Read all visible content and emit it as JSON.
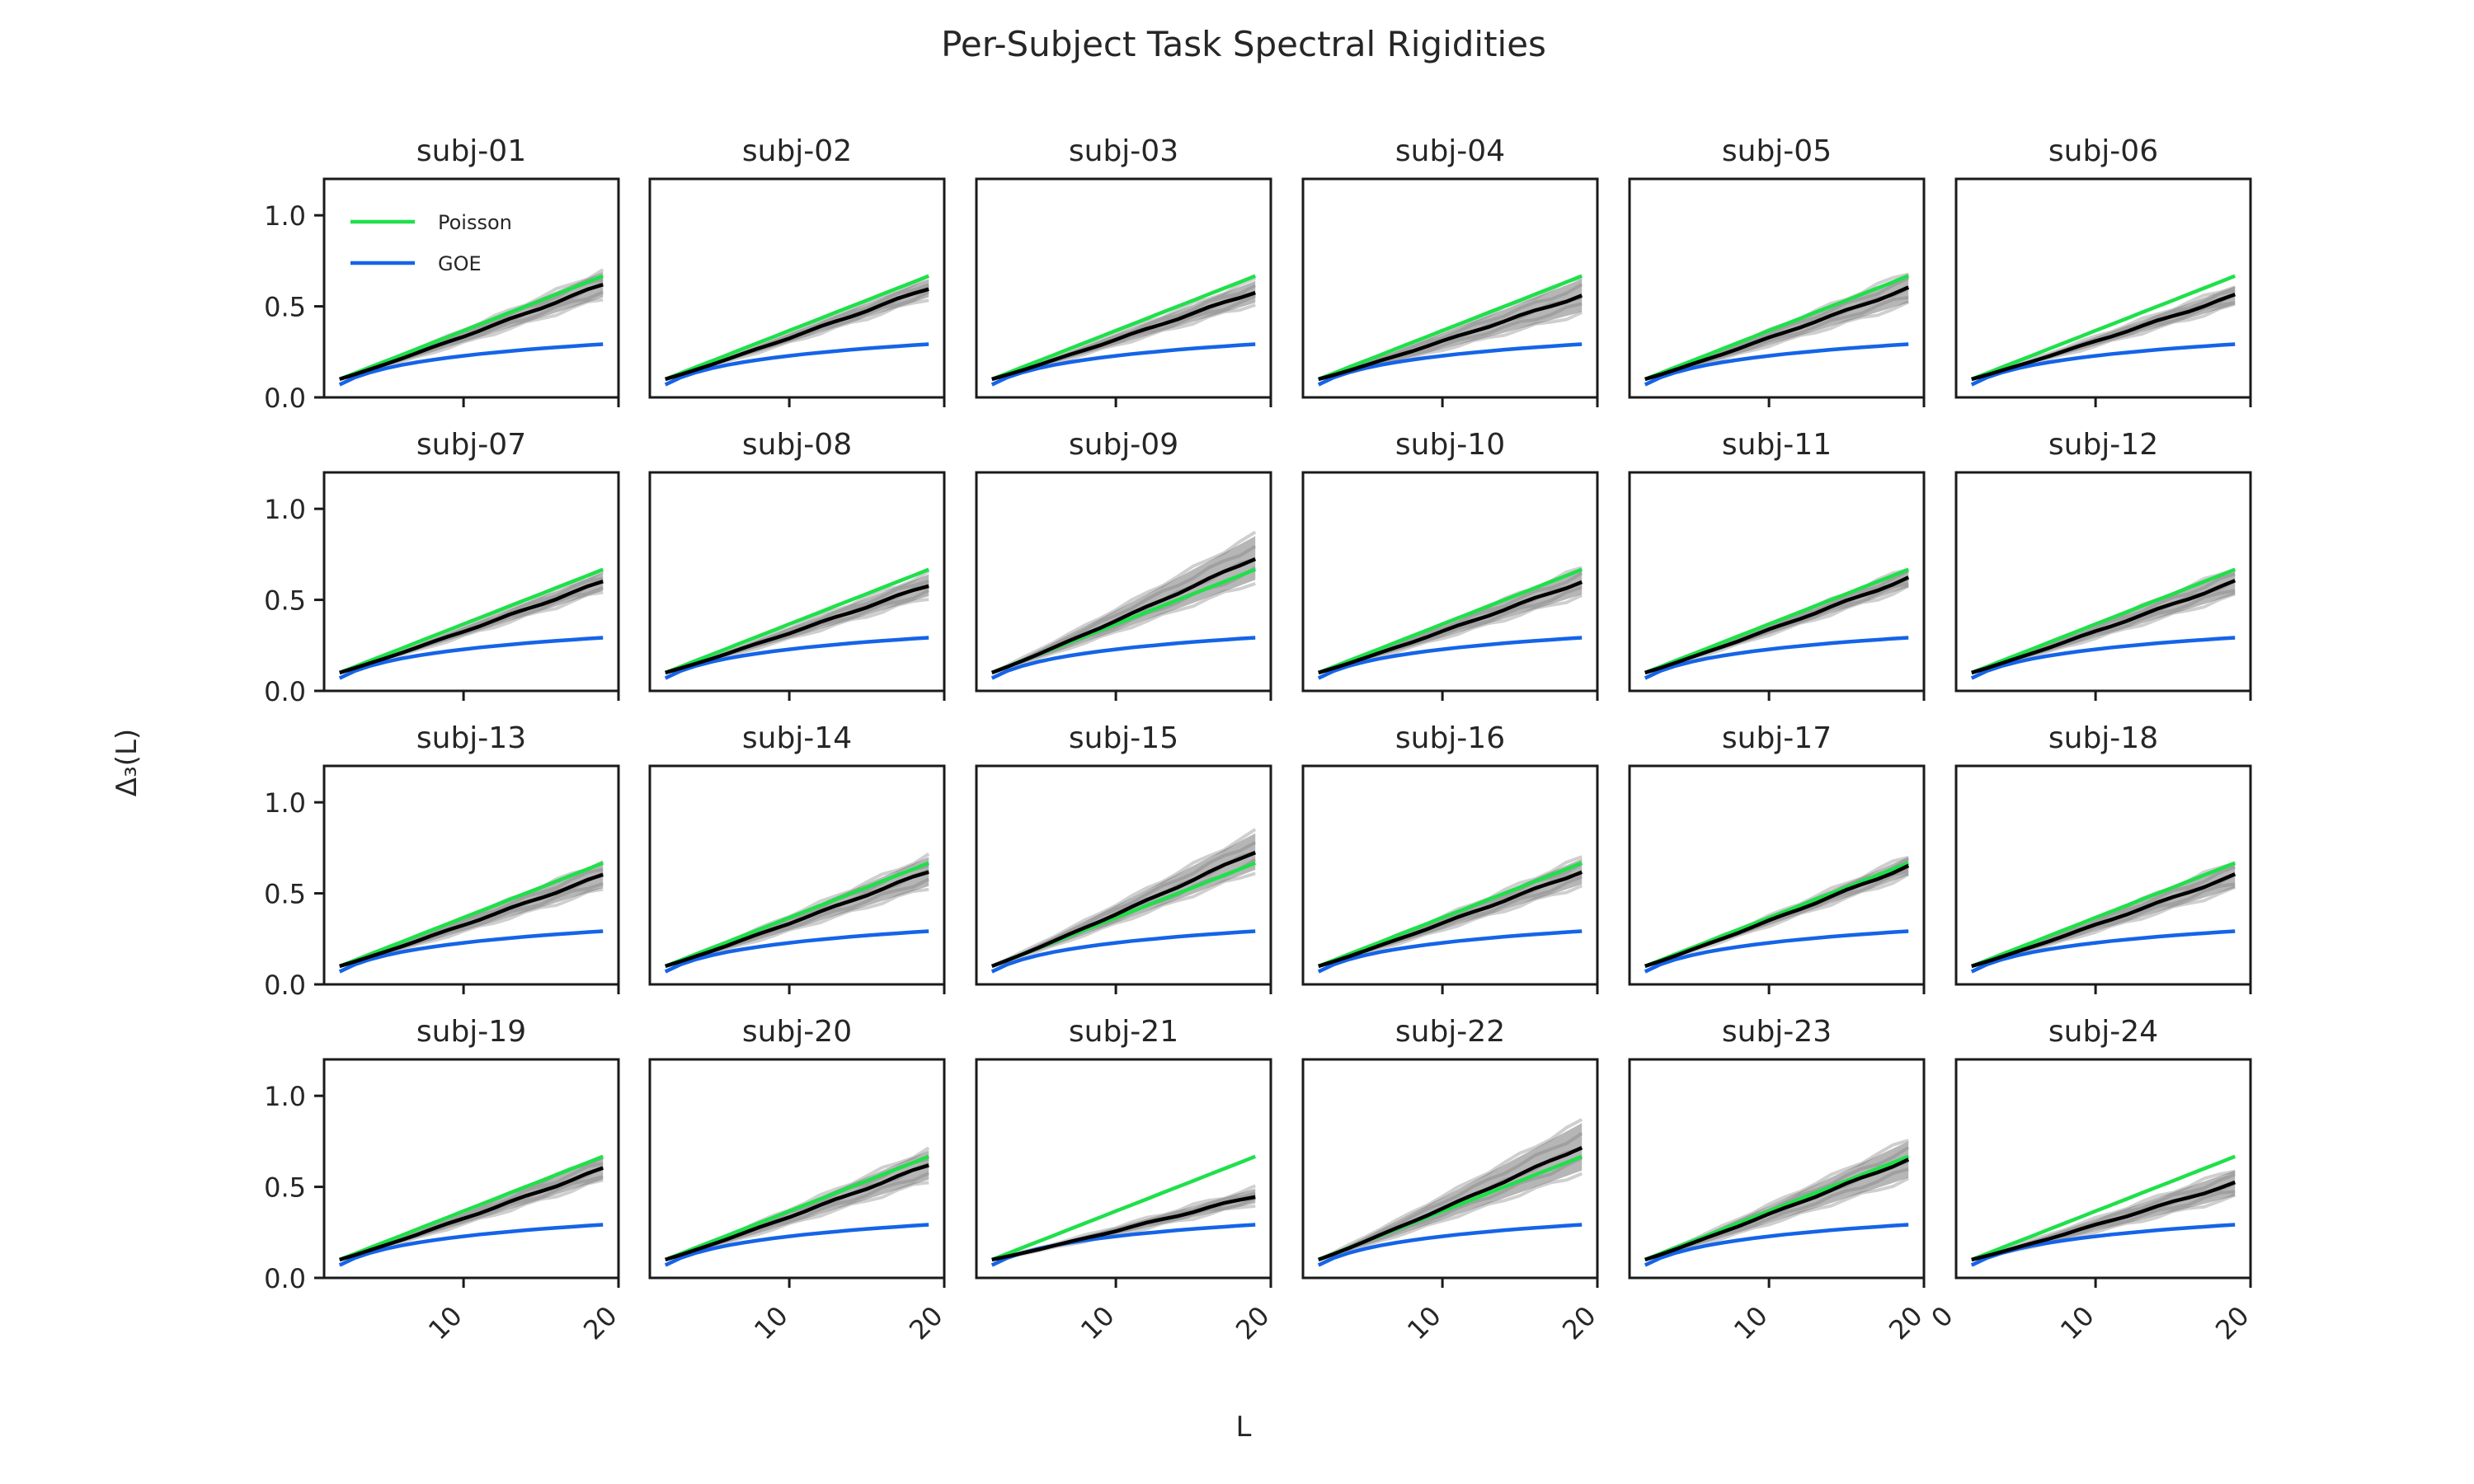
{
  "chart_data": {
    "type": "line",
    "title": "Per-Subject Task Spectral Rigidities",
    "xlabel": "L",
    "ylabel": "Δ₃(L)",
    "xlim": [
      1,
      20
    ],
    "ylim": [
      0,
      1.2
    ],
    "xticks": [
      10,
      20
    ],
    "xticks_last_panel": [
      0,
      10,
      20
    ],
    "yticks": [
      0.0,
      0.5,
      1.0
    ],
    "ytick_labels": [
      "0.0",
      "0.5",
      "1.0"
    ],
    "grid": false,
    "legend": {
      "placement": "top-left",
      "panel_index": 0
    },
    "x": [
      2,
      3,
      4,
      5,
      6,
      7,
      8,
      9,
      10,
      11,
      12,
      13,
      14,
      15,
      16,
      17,
      18,
      19
    ],
    "series": [
      {
        "name": "Poisson",
        "color": "#1fe04a",
        "values": [
          0.1,
          0.133,
          0.167,
          0.2,
          0.233,
          0.267,
          0.3,
          0.333,
          0.367,
          0.4,
          0.433,
          0.467,
          0.5,
          0.533,
          0.567,
          0.6,
          0.633,
          0.667
        ]
      },
      {
        "name": "GOE",
        "color": "#1464e8",
        "values": [
          0.07,
          0.11,
          0.138,
          0.16,
          0.178,
          0.193,
          0.206,
          0.218,
          0.228,
          0.238,
          0.246,
          0.254,
          0.262,
          0.269,
          0.275,
          0.281,
          0.287,
          0.292
        ]
      }
    ],
    "panels": [
      {
        "title": "subj-01",
        "mean_end": 0.62,
        "band": 0.07
      },
      {
        "title": "subj-02",
        "mean_end": 0.6,
        "band": 0.05
      },
      {
        "title": "subj-03",
        "mean_end": 0.58,
        "band": 0.06
      },
      {
        "title": "subj-04",
        "mean_end": 0.56,
        "band": 0.09
      },
      {
        "title": "subj-05",
        "mean_end": 0.6,
        "band": 0.08
      },
      {
        "title": "subj-06",
        "mean_end": 0.56,
        "band": 0.05
      },
      {
        "title": "subj-07",
        "mean_end": 0.6,
        "band": 0.05
      },
      {
        "title": "subj-08",
        "mean_end": 0.58,
        "band": 0.06
      },
      {
        "title": "subj-09",
        "mean_end": 0.73,
        "band": 0.12
      },
      {
        "title": "subj-10",
        "mean_end": 0.6,
        "band": 0.07
      },
      {
        "title": "subj-11",
        "mean_end": 0.62,
        "band": 0.05
      },
      {
        "title": "subj-12",
        "mean_end": 0.6,
        "band": 0.07
      },
      {
        "title": "subj-13",
        "mean_end": 0.6,
        "band": 0.07
      },
      {
        "title": "subj-14",
        "mean_end": 0.62,
        "band": 0.08
      },
      {
        "title": "subj-15",
        "mean_end": 0.73,
        "band": 0.1
      },
      {
        "title": "subj-16",
        "mean_end": 0.62,
        "band": 0.07
      },
      {
        "title": "subj-17",
        "mean_end": 0.65,
        "band": 0.05
      },
      {
        "title": "subj-18",
        "mean_end": 0.6,
        "band": 0.07
      },
      {
        "title": "subj-19",
        "mean_end": 0.6,
        "band": 0.06
      },
      {
        "title": "subj-20",
        "mean_end": 0.62,
        "band": 0.08
      },
      {
        "title": "subj-21",
        "mean_end": 0.45,
        "band": 0.04
      },
      {
        "title": "subj-22",
        "mean_end": 0.72,
        "band": 0.13
      },
      {
        "title": "subj-23",
        "mean_end": 0.65,
        "band": 0.1
      },
      {
        "title": "subj-24",
        "mean_end": 0.52,
        "band": 0.07
      }
    ]
  }
}
